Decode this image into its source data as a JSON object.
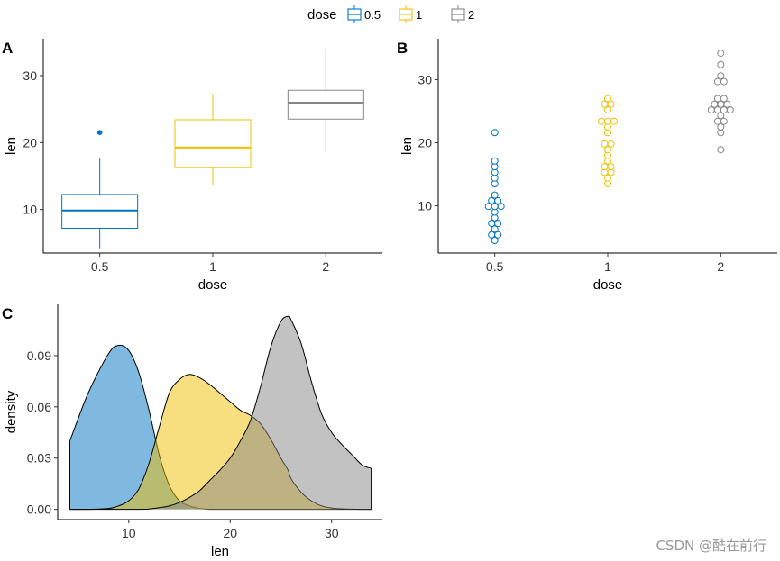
{
  "legend": {
    "title": "dose",
    "position": "top",
    "items": [
      {
        "label": "0.5",
        "color": "#0073C2"
      },
      {
        "label": "1",
        "color": "#EFC000"
      },
      {
        "label": "2",
        "color": "#868686"
      }
    ]
  },
  "watermark": "CSDN @酷在前行",
  "chart_data": [
    {
      "panel": "A",
      "type": "box",
      "xlabel": "dose",
      "ylabel": "len",
      "categories": [
        "0.5",
        "1",
        "2"
      ],
      "ylim": [
        3.5,
        35.5
      ],
      "yticks": [
        10,
        20,
        30
      ],
      "grid": false,
      "boxes": [
        {
          "category": "0.5",
          "min": 4.2,
          "q1": 7.2,
          "median": 9.85,
          "q3": 12.25,
          "max": 17.6,
          "outliers": [
            21.5
          ],
          "color": "#0073C2"
        },
        {
          "category": "1",
          "min": 13.6,
          "q1": 16.25,
          "median": 19.25,
          "q3": 23.4,
          "max": 27.3,
          "outliers": [],
          "color": "#EFC000"
        },
        {
          "category": "2",
          "min": 18.5,
          "q1": 23.5,
          "median": 25.95,
          "q3": 27.8,
          "max": 33.9,
          "outliers": [],
          "color": "#868686"
        }
      ]
    },
    {
      "panel": "B",
      "type": "scatter",
      "subtype": "dotplot",
      "xlabel": "dose",
      "ylabel": "len",
      "categories": [
        "0.5",
        "1",
        "2"
      ],
      "ylim": [
        2.5,
        36.5
      ],
      "yticks": [
        10,
        20,
        30
      ],
      "grid": false,
      "series": [
        {
          "name": "0.5",
          "color": "#0073C2",
          "values": [
            4.2,
            5.2,
            5.8,
            6.4,
            7.0,
            7.3,
            8.2,
            9.4,
            9.7,
            10.0,
            10.0,
            11.2,
            11.2,
            11.5,
            13.6,
            14.5,
            15.2,
            16.5,
            17.3,
            21.5
          ]
        },
        {
          "name": "1",
          "color": "#EFC000",
          "values": [
            13.6,
            14.5,
            15.2,
            15.5,
            16.5,
            16.5,
            17.3,
            17.6,
            18.8,
            19.7,
            20.0,
            21.2,
            22.4,
            23.0,
            23.3,
            23.6,
            25.2,
            25.8,
            26.4,
            27.3
          ]
        },
        {
          "name": "2",
          "color": "#868686",
          "values": [
            18.5,
            21.5,
            22.4,
            23.0,
            23.6,
            24.5,
            24.8,
            25.5,
            26.4,
            25.5,
            26.4,
            26.7,
            27.3,
            29.4,
            29.5,
            30.9,
            32.5,
            33.9,
            26.4,
            24.8
          ]
        }
      ]
    },
    {
      "panel": "C",
      "type": "area",
      "subtype": "density",
      "xlabel": "len",
      "ylabel": "density",
      "xlim": [
        3,
        35
      ],
      "ylim": [
        -0.006,
        0.12
      ],
      "xticks": [
        10,
        20,
        30
      ],
      "yticks": [
        0.0,
        0.03,
        0.06,
        0.09
      ],
      "ytick_labels": [
        "0.00",
        "0.03",
        "0.06",
        "0.09"
      ],
      "grid": false,
      "x": [
        4.2,
        6,
        8,
        9,
        10,
        11,
        12,
        13,
        14,
        15,
        16,
        17,
        18,
        19,
        20,
        21,
        22,
        23,
        24,
        25,
        25.7,
        26,
        27,
        28,
        29,
        30,
        31,
        32,
        33,
        33.9
      ],
      "series": [
        {
          "name": "0.5",
          "color": "#0073C2",
          "values": [
            0.04,
            0.068,
            0.091,
            0.096,
            0.093,
            0.08,
            0.058,
            0.032,
            0.014,
            0.005,
            0.002,
            0.0005,
            0,
            0,
            0,
            0,
            0,
            0,
            0,
            0,
            0,
            0,
            0,
            0,
            0,
            0,
            0,
            0,
            0,
            0
          ]
        },
        {
          "name": "1",
          "color": "#EFC000",
          "values": [
            0,
            0,
            0.0005,
            0.002,
            0.005,
            0.012,
            0.027,
            0.048,
            0.068,
            0.076,
            0.079,
            0.077,
            0.073,
            0.068,
            0.063,
            0.058,
            0.055,
            0.05,
            0.041,
            0.03,
            0.023,
            0.018,
            0.01,
            0.005,
            0.002,
            0.0008,
            0.0003,
            0.0001,
            0,
            0
          ]
        },
        {
          "name": "2",
          "color": "#868686",
          "values": [
            0,
            0,
            0,
            0,
            0,
            0,
            0.0002,
            0.001,
            0.002,
            0.004,
            0.007,
            0.011,
            0.017,
            0.023,
            0.03,
            0.04,
            0.052,
            0.072,
            0.095,
            0.11,
            0.113,
            0.111,
            0.097,
            0.075,
            0.056,
            0.045,
            0.038,
            0.032,
            0.026,
            0.024
          ]
        }
      ]
    }
  ]
}
